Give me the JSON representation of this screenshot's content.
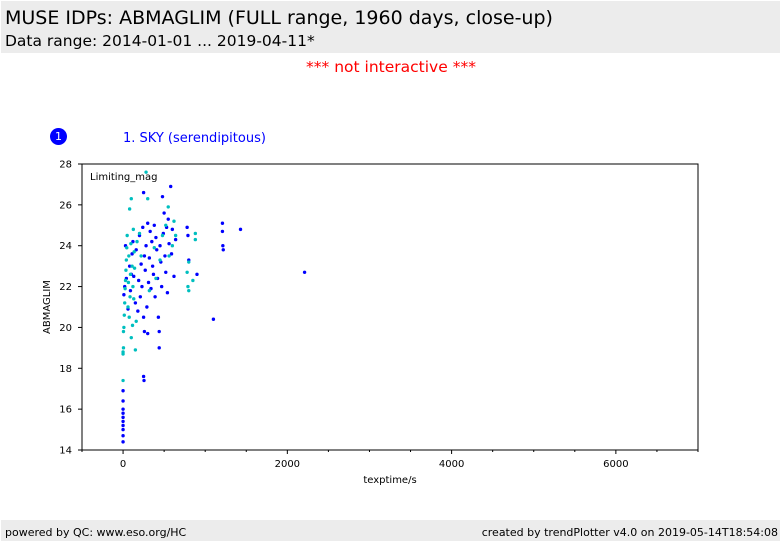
{
  "header": {
    "title": "MUSE IDPs: ABMAGLIM (FULL range, 1960 days, close-up)",
    "subtitle": "Data range: 2014-01-01 ... 2019-04-11*"
  },
  "notice": "*** not interactive ***",
  "panel": {
    "badge": "1",
    "title": "1. SKY (serendipitous)"
  },
  "footer": {
    "left": "powered by QC: www.eso.org/HC",
    "right": "created by trendPlotter v4.0 on 2019-05-14T18:54:08"
  },
  "colors": {
    "series_blue": "#0000ff",
    "series_cyan": "#00bfbf",
    "notice": "#ff0000",
    "panel_title": "#0000ff"
  },
  "chart_data": {
    "type": "scatter",
    "title": "",
    "annotation": "Limiting_mag",
    "xlabel": "texptime/s",
    "ylabel": "ABMAGLIM",
    "xlim": [
      -500,
      7000
    ],
    "ylim": [
      14,
      28
    ],
    "xticks": [
      0,
      2000,
      4000,
      6000
    ],
    "yticks": [
      14,
      16,
      18,
      20,
      22,
      24,
      26,
      28
    ],
    "grid": false,
    "series": [
      {
        "color": "#0000ff",
        "points": [
          [
            0,
            14.4
          ],
          [
            0,
            14.7
          ],
          [
            0,
            15.0
          ],
          [
            0,
            15.2
          ],
          [
            0,
            15.4
          ],
          [
            0,
            15.6
          ],
          [
            0,
            15.8
          ],
          [
            0,
            16.0
          ],
          [
            0,
            16.4
          ],
          [
            0,
            16.9
          ],
          [
            10,
            21.6
          ],
          [
            20,
            22.0
          ],
          [
            30,
            24.0
          ],
          [
            40,
            22.4
          ],
          [
            60,
            20.9
          ],
          [
            80,
            23.0
          ],
          [
            90,
            21.8
          ],
          [
            100,
            22.6
          ],
          [
            110,
            23.6
          ],
          [
            120,
            24.2
          ],
          [
            130,
            22.5
          ],
          [
            150,
            21.2
          ],
          [
            160,
            23.8
          ],
          [
            180,
            20.8
          ],
          [
            190,
            22.3
          ],
          [
            200,
            24.5
          ],
          [
            210,
            21.5
          ],
          [
            220,
            23.1
          ],
          [
            230,
            22.0
          ],
          [
            240,
            24.9
          ],
          [
            250,
            20.5
          ],
          [
            250,
            26.6
          ],
          [
            250,
            17.6
          ],
          [
            255,
            17.4
          ],
          [
            260,
            19.8
          ],
          [
            260,
            23.5
          ],
          [
            270,
            22.8
          ],
          [
            280,
            24.0
          ],
          [
            290,
            21.0
          ],
          [
            300,
            25.1
          ],
          [
            300,
            19.7
          ],
          [
            310,
            22.2
          ],
          [
            320,
            23.4
          ],
          [
            330,
            24.7
          ],
          [
            340,
            21.9
          ],
          [
            350,
            24.2
          ],
          [
            360,
            23.0
          ],
          [
            370,
            22.6
          ],
          [
            380,
            25.0
          ],
          [
            390,
            21.5
          ],
          [
            400,
            24.4
          ],
          [
            410,
            23.8
          ],
          [
            420,
            22.4
          ],
          [
            430,
            20.5
          ],
          [
            440,
            19.0
          ],
          [
            440,
            19.8
          ],
          [
            450,
            24.0
          ],
          [
            460,
            23.2
          ],
          [
            470,
            22.0
          ],
          [
            480,
            26.4
          ],
          [
            490,
            24.6
          ],
          [
            500,
            25.6
          ],
          [
            510,
            23.5
          ],
          [
            520,
            22.7
          ],
          [
            530,
            24.9
          ],
          [
            540,
            21.7
          ],
          [
            550,
            25.3
          ],
          [
            560,
            24.1
          ],
          [
            580,
            26.9
          ],
          [
            590,
            23.6
          ],
          [
            600,
            24.8
          ],
          [
            620,
            22.5
          ],
          [
            640,
            24.3
          ],
          [
            780,
            24.9
          ],
          [
            790,
            24.5
          ],
          [
            800,
            23.3
          ],
          [
            900,
            22.6
          ],
          [
            1100,
            20.4
          ],
          [
            1210,
            25.1
          ],
          [
            1210,
            24.7
          ],
          [
            1215,
            24.0
          ],
          [
            1220,
            23.8
          ],
          [
            1430,
            24.8
          ],
          [
            2210,
            22.7
          ]
        ]
      },
      {
        "color": "#00bfbf",
        "points": [
          [
            0,
            17.4
          ],
          [
            0,
            18.7
          ],
          [
            0,
            18.8
          ],
          [
            5,
            19.0
          ],
          [
            5,
            19.8
          ],
          [
            10,
            20.0
          ],
          [
            15,
            20.6
          ],
          [
            20,
            21.2
          ],
          [
            25,
            21.9
          ],
          [
            30,
            22.3
          ],
          [
            35,
            22.8
          ],
          [
            40,
            23.3
          ],
          [
            45,
            23.9
          ],
          [
            50,
            24.5
          ],
          [
            60,
            21.0
          ],
          [
            65,
            22.2
          ],
          [
            70,
            23.5
          ],
          [
            75,
            20.5
          ],
          [
            80,
            25.8
          ],
          [
            85,
            21.5
          ],
          [
            90,
            22.6
          ],
          [
            95,
            24.1
          ],
          [
            100,
            19.5
          ],
          [
            100,
            26.3
          ],
          [
            110,
            23.0
          ],
          [
            115,
            20.1
          ],
          [
            120,
            22.0
          ],
          [
            125,
            24.8
          ],
          [
            130,
            21.4
          ],
          [
            135,
            23.7
          ],
          [
            140,
            22.9
          ],
          [
            150,
            18.9
          ],
          [
            160,
            20.3
          ],
          [
            170,
            24.2
          ],
          [
            200,
            24.6
          ],
          [
            220,
            23.5
          ],
          [
            280,
            27.6
          ],
          [
            300,
            26.3
          ],
          [
            320,
            21.8
          ],
          [
            380,
            23.9
          ],
          [
            400,
            22.4
          ],
          [
            450,
            23.3
          ],
          [
            480,
            24.5
          ],
          [
            520,
            25.0
          ],
          [
            550,
            25.9
          ],
          [
            560,
            23.5
          ],
          [
            600,
            24.0
          ],
          [
            620,
            25.2
          ],
          [
            640,
            24.5
          ],
          [
            780,
            22.7
          ],
          [
            790,
            22.0
          ],
          [
            800,
            23.2
          ],
          [
            800,
            21.8
          ],
          [
            850,
            22.3
          ],
          [
            880,
            24.3
          ],
          [
            880,
            24.6
          ]
        ]
      }
    ]
  }
}
